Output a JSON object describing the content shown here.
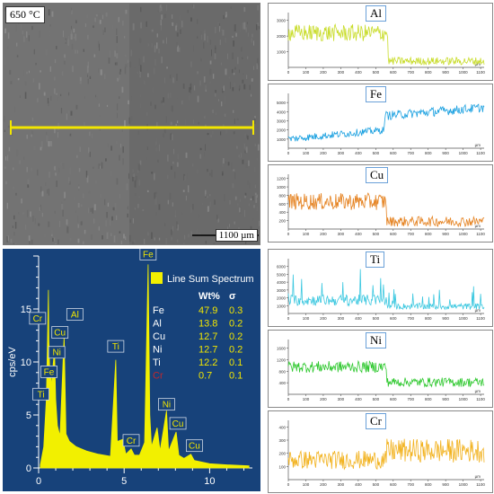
{
  "sem": {
    "temperature_label": "650 °C",
    "scale_label": "1100 µm",
    "colors": {
      "line": "#f2e600",
      "frame": "#777777"
    }
  },
  "eds": {
    "ylabel": "cps/eV",
    "legend": {
      "title": "Line Sum Spectrum",
      "wt_header": "Wt%",
      "sigma_header": "σ"
    },
    "table": [
      {
        "el": "Fe",
        "wt": "47.9",
        "sigma": "0.3",
        "color": "#ffffff"
      },
      {
        "el": "Al",
        "wt": "13.8",
        "sigma": "0.2",
        "color": "#ffffff"
      },
      {
        "el": "Cu",
        "wt": "12.7",
        "sigma": "0.2",
        "color": "#ffffff"
      },
      {
        "el": "Ni",
        "wt": "12.7",
        "sigma": "0.2",
        "color": "#ffffff"
      },
      {
        "el": "Ti",
        "wt": "12.2",
        "sigma": "0.1",
        "color": "#ffffff"
      },
      {
        "el": "Cr",
        "wt": "0.7",
        "sigma": "0.1",
        "color": "#c0272d"
      }
    ],
    "colors": {
      "background": "#17427a",
      "spectrum": "#f2f000",
      "text": "#ffffff",
      "value_text": "#f2e600"
    }
  },
  "chart_data": [
    {
      "type": "area",
      "title": "",
      "ylabel": "cps/eV",
      "xlim": [
        0,
        12.5
      ],
      "ylim": [
        0,
        20
      ],
      "xticks": [
        0,
        5,
        10
      ],
      "yticks": [
        0,
        5,
        10,
        15
      ],
      "peaks": [
        {
          "label": "Fe",
          "x": 6.4,
          "y": 19.2
        },
        {
          "label": "Cr",
          "x": 0.57,
          "y": 12.3
        },
        {
          "label": "Al",
          "x": 1.49,
          "y": 12.5
        },
        {
          "label": "Cu",
          "x": 0.93,
          "y": 10.8
        },
        {
          "label": "Ni",
          "x": 0.85,
          "y": 9.6
        },
        {
          "label": "Fe",
          "x": 0.71,
          "y": 8.1
        },
        {
          "label": "Ti",
          "x": 0.45,
          "y": 6.5
        },
        {
          "label": "Ti",
          "x": 4.51,
          "y": 10.5
        },
        {
          "label": "Cr",
          "x": 5.41,
          "y": 1.8
        },
        {
          "label": "Ni",
          "x": 7.48,
          "y": 5.2
        },
        {
          "label": "Cu",
          "x": 8.04,
          "y": 3.4
        },
        {
          "label": "Cu",
          "x": 8.9,
          "y": 1.3
        }
      ],
      "spectrum": [
        [
          0.1,
          0.3
        ],
        [
          0.3,
          2
        ],
        [
          0.45,
          6.5
        ],
        [
          0.52,
          12.2
        ],
        [
          0.57,
          16.8
        ],
        [
          0.6,
          12
        ],
        [
          0.65,
          9
        ],
        [
          0.71,
          9.5
        ],
        [
          0.78,
          7.5
        ],
        [
          0.85,
          9.8
        ],
        [
          0.93,
          11.2
        ],
        [
          1.0,
          6.5
        ],
        [
          1.1,
          4
        ],
        [
          1.25,
          3
        ],
        [
          1.49,
          12.5
        ],
        [
          1.6,
          3.2
        ],
        [
          1.8,
          2.5
        ],
        [
          2.2,
          2
        ],
        [
          2.8,
          1.6
        ],
        [
          3.5,
          1.3
        ],
        [
          4.2,
          1.1
        ],
        [
          4.51,
          10.2
        ],
        [
          4.6,
          2.5
        ],
        [
          4.93,
          2.7
        ],
        [
          5.1,
          1.3
        ],
        [
          5.41,
          1.8
        ],
        [
          5.6,
          1.2
        ],
        [
          5.9,
          1.2
        ],
        [
          6.2,
          2.4
        ],
        [
          6.4,
          19.2
        ],
        [
          6.5,
          5
        ],
        [
          6.6,
          2
        ],
        [
          6.93,
          3.8
        ],
        [
          7.1,
          1.6
        ],
        [
          7.48,
          5.4
        ],
        [
          7.6,
          1.6
        ],
        [
          8.04,
          3.4
        ],
        [
          8.2,
          1.2
        ],
        [
          8.5,
          0.9
        ],
        [
          8.9,
          1.3
        ],
        [
          9.1,
          0.7
        ],
        [
          10,
          0.4
        ],
        [
          11,
          0.3
        ],
        [
          12.3,
          0.2
        ]
      ]
    },
    {
      "type": "line",
      "title": "Al",
      "xlabel": "µm",
      "color": "#c8dc28",
      "xlim": [
        0,
        1120
      ],
      "ylim": [
        0,
        3500
      ],
      "xticks": [
        0,
        100,
        200,
        300,
        400,
        500,
        600,
        700,
        800,
        900,
        1000,
        1100
      ],
      "yticks": [
        1000,
        2000,
        3000
      ],
      "segments": [
        {
          "from": 0,
          "to": 570,
          "mean": 2200,
          "amp": 550
        },
        {
          "from": 570,
          "to": 1120,
          "mean": 400,
          "amp": 250
        }
      ]
    },
    {
      "type": "line",
      "title": "Fe",
      "xlabel": "µm",
      "color": "#1aa0e0",
      "xlim": [
        0,
        1120
      ],
      "ylim": [
        0,
        6000
      ],
      "xticks": [
        0,
        100,
        200,
        300,
        400,
        500,
        600,
        700,
        800,
        900,
        1000,
        1100
      ],
      "yticks": [
        1000,
        2000,
        3000,
        4000,
        5000
      ],
      "segments": [
        {
          "from": 0,
          "to": 550,
          "mean": 1500,
          "amp": 400,
          "slope": 1000
        },
        {
          "from": 550,
          "to": 1120,
          "mean": 4000,
          "amp": 500,
          "slope": 900
        }
      ]
    },
    {
      "type": "line",
      "title": "Cu",
      "xlabel": "µm",
      "color": "#e58220",
      "xlim": [
        0,
        1120
      ],
      "ylim": [
        0,
        1300
      ],
      "xticks": [
        0,
        100,
        200,
        300,
        400,
        500,
        600,
        700,
        800,
        900,
        1000,
        1100
      ],
      "yticks": [
        200,
        400,
        600,
        800,
        1000,
        1200
      ],
      "segments": [
        {
          "from": 0,
          "to": 560,
          "mean": 650,
          "amp": 200
        },
        {
          "from": 560,
          "to": 1120,
          "mean": 180,
          "amp": 120
        }
      ]
    },
    {
      "type": "line",
      "title": "Ti",
      "xlabel": "µm",
      "color": "#3cc8e0",
      "xlim": [
        0,
        1120
      ],
      "ylim": [
        0,
        7000
      ],
      "xticks": [
        0,
        100,
        200,
        300,
        400,
        500,
        600,
        700,
        800,
        900,
        1000,
        1100
      ],
      "yticks": [
        1000,
        2000,
        3000,
        4000,
        5000,
        6000
      ],
      "segments": [
        {
          "from": 0,
          "to": 560,
          "mean": 1700,
          "amp": 700,
          "spikes": 2500
        },
        {
          "from": 560,
          "to": 1120,
          "mean": 900,
          "amp": 400,
          "spikes": 1500
        }
      ]
    },
    {
      "type": "line",
      "title": "Ni",
      "xlabel": "µm",
      "color": "#2ec82e",
      "xlim": [
        0,
        1120
      ],
      "ylim": [
        0,
        1900
      ],
      "xticks": [
        0,
        100,
        200,
        300,
        400,
        500,
        600,
        700,
        800,
        900,
        1000,
        1100
      ],
      "yticks": [
        400,
        800,
        1200,
        1600
      ],
      "segments": [
        {
          "from": 0,
          "to": 560,
          "mean": 950,
          "amp": 200
        },
        {
          "from": 560,
          "to": 1120,
          "mean": 420,
          "amp": 160
        }
      ]
    },
    {
      "type": "line",
      "title": "Cr",
      "xlabel": "µm",
      "color": "#f2b21e",
      "xlim": [
        0,
        1120
      ],
      "ylim": [
        0,
        450
      ],
      "xticks": [
        0,
        100,
        200,
        300,
        400,
        500,
        600,
        700,
        800,
        900,
        1000,
        1100
      ],
      "yticks": [
        100,
        200,
        300,
        400
      ],
      "segments": [
        {
          "from": 0,
          "to": 560,
          "mean": 150,
          "amp": 70
        },
        {
          "from": 560,
          "to": 1120,
          "mean": 220,
          "amp": 90
        }
      ]
    }
  ]
}
